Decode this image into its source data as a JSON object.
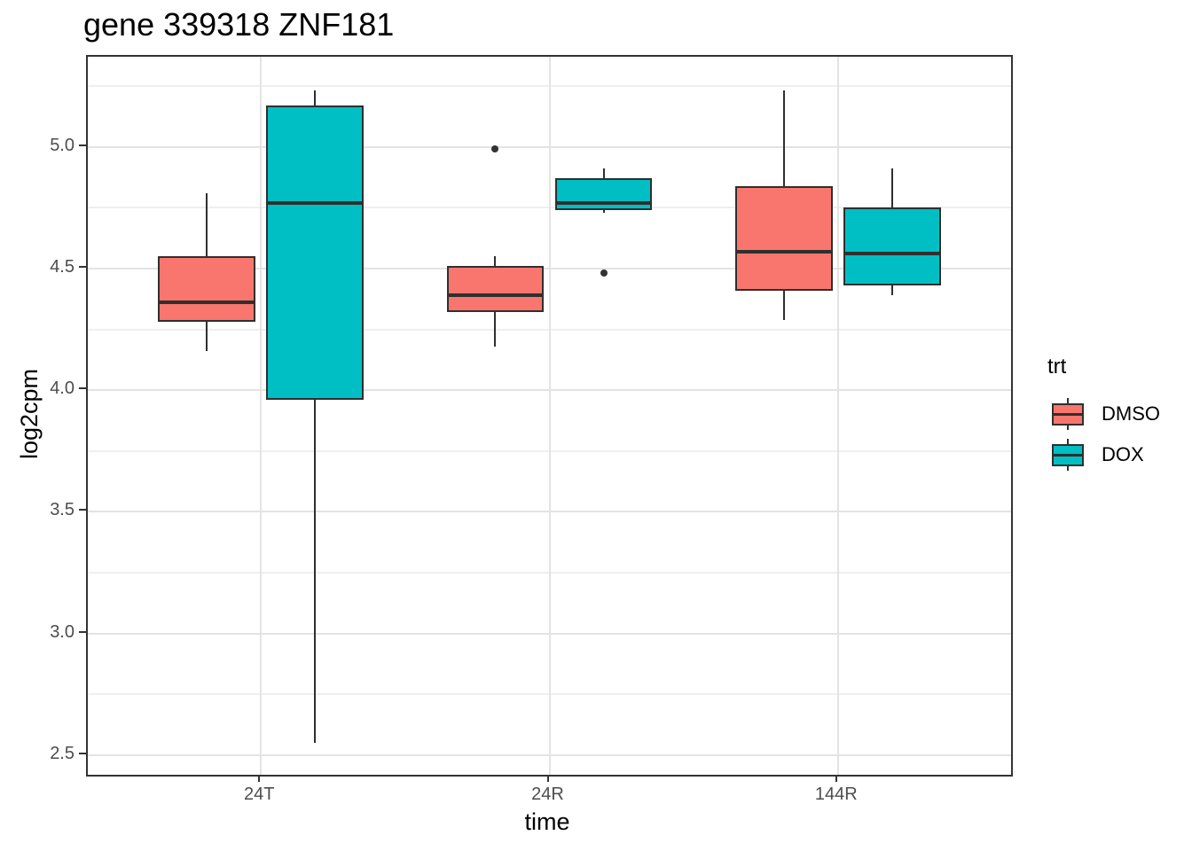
{
  "chart_data": {
    "type": "boxplot",
    "title": "gene 339318 ZNF181",
    "xlabel": "time",
    "ylabel": "log2cpm",
    "categories": [
      "24T",
      "24R",
      "144R"
    ],
    "y_ticks": [
      2.5,
      3.0,
      3.5,
      4.0,
      4.5,
      5.0
    ],
    "ylim": [
      2.42,
      5.37
    ],
    "grid": true,
    "legend": {
      "title": "trt",
      "position": "right",
      "entries": [
        {
          "label": "DMSO",
          "color": "#F8766D"
        },
        {
          "label": "DOX",
          "color": "#00BFC4"
        }
      ]
    },
    "series": [
      {
        "name": "DMSO",
        "color": "#F8766D",
        "boxes": [
          {
            "category": "24T",
            "whisker_low": 4.16,
            "q1": 4.28,
            "median": 4.36,
            "q3": 4.55,
            "whisker_high": 4.81,
            "outliers": []
          },
          {
            "category": "24R",
            "whisker_low": 4.18,
            "q1": 4.32,
            "median": 4.39,
            "q3": 4.51,
            "whisker_high": 4.55,
            "outliers": [
              4.99
            ]
          },
          {
            "category": "144R",
            "whisker_low": 4.29,
            "q1": 4.41,
            "median": 4.57,
            "q3": 4.84,
            "whisker_high": 5.23,
            "outliers": []
          }
        ]
      },
      {
        "name": "DOX",
        "color": "#00BFC4",
        "boxes": [
          {
            "category": "24T",
            "whisker_low": 2.55,
            "q1": 3.96,
            "median": 4.77,
            "q3": 5.17,
            "whisker_high": 5.23,
            "outliers": []
          },
          {
            "category": "24R",
            "whisker_low": 4.73,
            "q1": 4.74,
            "median": 4.77,
            "q3": 4.87,
            "whisker_high": 4.91,
            "outliers": [
              4.48
            ]
          },
          {
            "category": "144R",
            "whisker_low": 4.39,
            "q1": 4.43,
            "median": 4.56,
            "q3": 4.75,
            "whisker_high": 4.91,
            "outliers": []
          }
        ]
      }
    ],
    "layout": {
      "group_positions": [
        0.1875,
        0.5,
        0.8125
      ],
      "box_width_frac": 0.1055,
      "dodge_frac": 0.0586
    },
    "colors": {
      "box_border": "#2f2f2f",
      "grid_major": "#e3e3e3",
      "grid_minor": "#efefef",
      "axis_text": "#4d4d4d",
      "panel_border": "#333333"
    }
  }
}
